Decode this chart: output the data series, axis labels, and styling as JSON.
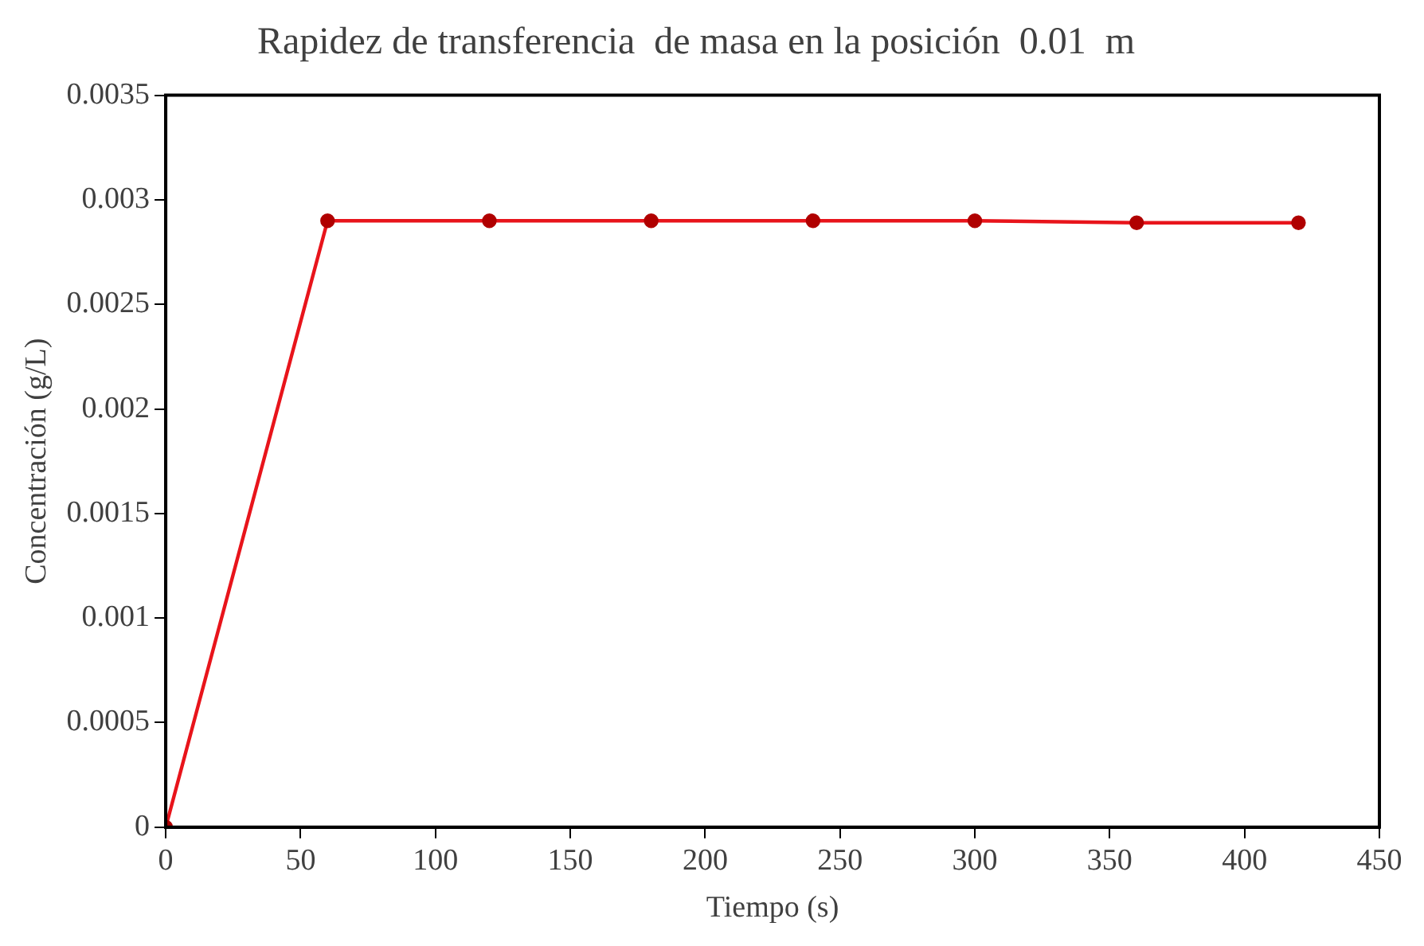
{
  "chart_data": {
    "type": "line",
    "title": "Rapidez de transferencia  de masa en la posición  0.01  m",
    "xlabel": "Tiempo (s)",
    "ylabel": "Concentración (g/L)",
    "x": [
      0,
      60,
      120,
      180,
      240,
      300,
      360,
      420
    ],
    "series": [
      {
        "color": "#e8141b",
        "values": [
          0,
          0.0029,
          0.0029,
          0.0029,
          0.0029,
          0.0029,
          0.00289,
          0.00289
        ]
      }
    ],
    "xlim": [
      0,
      450
    ],
    "xticks": [
      0,
      50,
      100,
      150,
      200,
      250,
      300,
      350,
      400,
      450
    ],
    "ylim": [
      0,
      0.0035
    ],
    "yticks": [
      0,
      0.0005,
      0.001,
      0.0015,
      0.002,
      0.0025,
      0.003,
      0.0035
    ],
    "grid": false,
    "legend": false,
    "marker": "circle",
    "line_style": "solid"
  }
}
